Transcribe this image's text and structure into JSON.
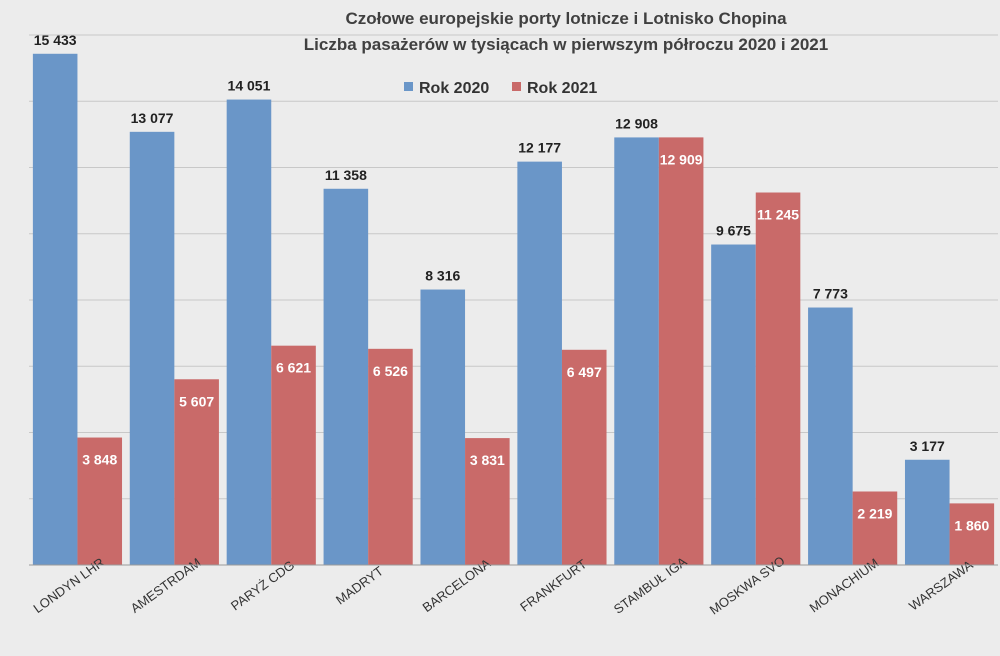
{
  "chart_data": {
    "type": "bar",
    "title": "Czołowe europejskie porty lotnicze i Lotnisko Chopina",
    "subtitle": "Liczba pasażerów w tysiącach w pierwszym półroczu 2020 i 2021",
    "categories": [
      "LONDYN LHR",
      "AMESTRDAM",
      "PARYŻ CDG",
      "MADRYT",
      "BARCELONA",
      "FRANKFURT",
      "STAMBUŁ IGA",
      "MOSKWA SVO",
      "MONACHIUM",
      "WARSZAWA"
    ],
    "series": [
      {
        "name": "Rok 2020",
        "color": "#6a96c8",
        "values": [
          15433,
          13077,
          14051,
          11358,
          8316,
          12177,
          12908,
          9675,
          7773,
          3177
        ],
        "labels": [
          "15 433",
          "13 077",
          "14 051",
          "11 358",
          "8 316",
          "12 177",
          "12 908",
          "9 675",
          "7 773",
          "3 177"
        ]
      },
      {
        "name": "Rok 2021",
        "color": "#c96a69",
        "values": [
          3848,
          5607,
          6621,
          6526,
          3831,
          6497,
          12909,
          11245,
          2219,
          1860
        ],
        "labels": [
          "3 848",
          "5 607",
          "6 621",
          "6 526",
          "3 831",
          "6 497",
          "12 909",
          "11 245",
          "2 219",
          "1 860"
        ]
      }
    ],
    "ylim": [
      0,
      16000
    ],
    "grid": true,
    "legend_position": "top-center"
  }
}
